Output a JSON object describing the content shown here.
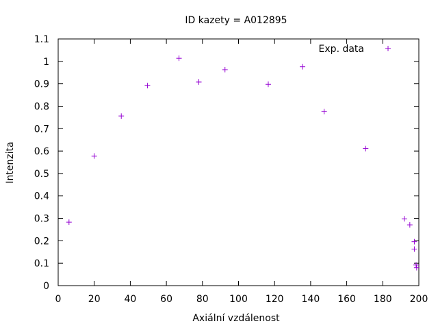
{
  "chart_data": {
    "type": "scatter",
    "title": "ID kazety = A012895",
    "xlabel": "Axiální vzdálenost",
    "ylabel": "Intenzita",
    "xlim": [
      0,
      200
    ],
    "ylim": [
      0,
      1.1
    ],
    "xticks": [
      0,
      20,
      40,
      60,
      80,
      100,
      120,
      140,
      160,
      180,
      200
    ],
    "xtick_labels": [
      "0",
      "20",
      "40",
      "60",
      "80",
      "100",
      "120",
      "140",
      "160",
      "180",
      "200"
    ],
    "yticks": [
      0,
      0.1,
      0.2,
      0.3,
      0.4,
      0.5,
      0.6,
      0.7,
      0.8,
      0.9,
      1,
      1.1
    ],
    "ytick_labels": [
      "0",
      "0.1",
      "0.2",
      "0.3",
      "0.4",
      "0.5",
      "0.6",
      "0.7",
      "0.8",
      "0.9",
      "1",
      "1.1"
    ],
    "grid": false,
    "legend_position": "top-right",
    "series": [
      {
        "name": "Exp. data",
        "marker": "plus",
        "color": "#9400d3",
        "x": [
          6,
          20,
          35,
          49.5,
          67,
          78,
          92.5,
          116.5,
          135.5,
          147.5,
          170.5,
          192,
          195,
          197.5,
          197.5,
          198.5,
          198.8
        ],
        "y": [
          0.283,
          0.578,
          0.756,
          0.892,
          1.014,
          0.908,
          0.963,
          0.898,
          0.976,
          0.776,
          0.611,
          0.298,
          0.271,
          0.196,
          0.163,
          0.092,
          0.08
        ]
      }
    ]
  }
}
